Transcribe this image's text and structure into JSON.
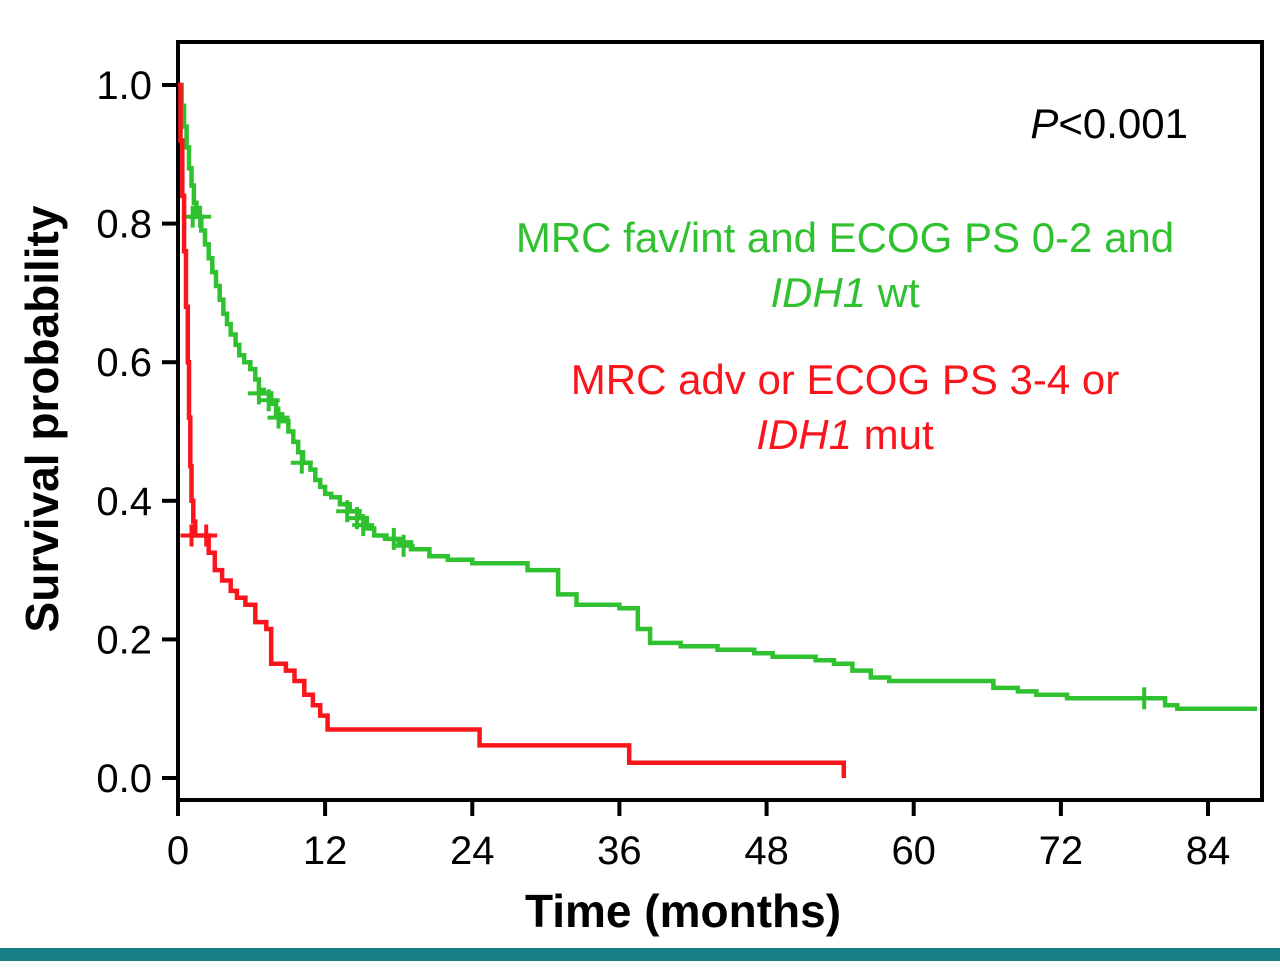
{
  "page": {
    "background": "#ffffff",
    "divider_color": "#177f88"
  },
  "annotations": {
    "p_value_italic": "P",
    "p_value_rest": "<0.001"
  },
  "axes": {
    "x_title": "Time (months)",
    "y_title": "Survival probability"
  },
  "legend": {
    "green": {
      "line1": "MRC fav/int and ECOG PS 0-2 and",
      "line2_italic": "IDH1",
      "line2_rest": " wt"
    },
    "red": {
      "line1": "MRC adv or ECOG PS 3-4 or",
      "line2_italic": "IDH1",
      "line2_rest": " mut"
    }
  },
  "chart_data": {
    "type": "line",
    "variant": "kaplan-meier-step",
    "title": "",
    "xlabel": "Time (months)",
    "ylabel": "Survival probability",
    "annotation": "P<0.001",
    "grid": false,
    "xlim": [
      0,
      88
    ],
    "ylim": [
      0,
      1.0
    ],
    "x_ticks": [
      0,
      12,
      24,
      36,
      48,
      60,
      72,
      84
    ],
    "y_ticks": [
      {
        "v": 1.0,
        "label": "1.0"
      },
      {
        "v": 0.8,
        "label": "0.8"
      },
      {
        "v": 0.6,
        "label": "0.6"
      },
      {
        "v": 0.4,
        "label": "0.4"
      },
      {
        "v": 0.2,
        "label": "0.2"
      },
      {
        "v": 0.0,
        "label": "0.0"
      }
    ],
    "series": [
      {
        "name": "MRC fav/int and ECOG PS 0-2 and IDH1 wt",
        "key": "green",
        "color": "#2fc12f",
        "points": [
          [
            0,
            1.0
          ],
          [
            0.3,
            0.97
          ],
          [
            0.5,
            0.94
          ],
          [
            0.7,
            0.91
          ],
          [
            0.9,
            0.88
          ],
          [
            1.1,
            0.855
          ],
          [
            1.3,
            0.83
          ],
          [
            1.5,
            0.81
          ],
          [
            1.9,
            0.79
          ],
          [
            2.2,
            0.77
          ],
          [
            2.5,
            0.75
          ],
          [
            2.8,
            0.73
          ],
          [
            3.1,
            0.71
          ],
          [
            3.4,
            0.69
          ],
          [
            3.7,
            0.67
          ],
          [
            4.0,
            0.655
          ],
          [
            4.3,
            0.64
          ],
          [
            4.7,
            0.625
          ],
          [
            5.0,
            0.61
          ],
          [
            5.4,
            0.6
          ],
          [
            5.9,
            0.59
          ],
          [
            6.3,
            0.575
          ],
          [
            6.6,
            0.56
          ],
          [
            7.0,
            0.555
          ],
          [
            7.6,
            0.54
          ],
          [
            8.0,
            0.525
          ],
          [
            8.5,
            0.515
          ],
          [
            9.0,
            0.5
          ],
          [
            9.4,
            0.485
          ],
          [
            9.8,
            0.47
          ],
          [
            10.2,
            0.455
          ],
          [
            10.8,
            0.445
          ],
          [
            11.2,
            0.43
          ],
          [
            11.6,
            0.42
          ],
          [
            12.0,
            0.41
          ],
          [
            12.5,
            0.405
          ],
          [
            13.2,
            0.395
          ],
          [
            14.0,
            0.385
          ],
          [
            14.8,
            0.375
          ],
          [
            15.4,
            0.36
          ],
          [
            16.0,
            0.35
          ],
          [
            17.0,
            0.345
          ],
          [
            18.0,
            0.34
          ],
          [
            19.0,
            0.33
          ],
          [
            20.5,
            0.32
          ],
          [
            22.0,
            0.315
          ],
          [
            24.0,
            0.31
          ],
          [
            28.5,
            0.3
          ],
          [
            31.0,
            0.265
          ],
          [
            32.5,
            0.25
          ],
          [
            36.0,
            0.245
          ],
          [
            37.5,
            0.215
          ],
          [
            38.5,
            0.195
          ],
          [
            41.0,
            0.19
          ],
          [
            44.0,
            0.185
          ],
          [
            47.0,
            0.18
          ],
          [
            48.5,
            0.175
          ],
          [
            52.0,
            0.17
          ],
          [
            53.5,
            0.165
          ],
          [
            55.0,
            0.155
          ],
          [
            56.5,
            0.145
          ],
          [
            58.0,
            0.14
          ],
          [
            66.5,
            0.13
          ],
          [
            68.5,
            0.125
          ],
          [
            70.0,
            0.12
          ],
          [
            72.5,
            0.115
          ],
          [
            80.5,
            0.105
          ],
          [
            81.5,
            0.1
          ],
          [
            88,
            0.1
          ]
        ],
        "censor_marks": [
          [
            1.2,
            0.81
          ],
          [
            1.8,
            0.81
          ],
          [
            6.6,
            0.555
          ],
          [
            7.4,
            0.545
          ],
          [
            8.2,
            0.52
          ],
          [
            10.1,
            0.455
          ],
          [
            13.8,
            0.385
          ],
          [
            14.6,
            0.375
          ],
          [
            15.1,
            0.365
          ],
          [
            17.6,
            0.345
          ],
          [
            18.4,
            0.335
          ],
          [
            78.8,
            0.115
          ]
        ]
      },
      {
        "name": "MRC adv or ECOG PS 3-4 or IDH1 mut",
        "key": "red",
        "color": "#f9151b",
        "points": [
          [
            0,
            1.0
          ],
          [
            0.2,
            0.92
          ],
          [
            0.35,
            0.84
          ],
          [
            0.5,
            0.76
          ],
          [
            0.65,
            0.68
          ],
          [
            0.8,
            0.6
          ],
          [
            0.9,
            0.52
          ],
          [
            1.0,
            0.45
          ],
          [
            1.1,
            0.4
          ],
          [
            1.25,
            0.37
          ],
          [
            1.4,
            0.35
          ],
          [
            2.5,
            0.325
          ],
          [
            3.0,
            0.3
          ],
          [
            3.6,
            0.285
          ],
          [
            4.3,
            0.27
          ],
          [
            4.8,
            0.26
          ],
          [
            5.5,
            0.25
          ],
          [
            6.3,
            0.225
          ],
          [
            7.2,
            0.215
          ],
          [
            7.6,
            0.165
          ],
          [
            8.8,
            0.155
          ],
          [
            9.5,
            0.14
          ],
          [
            10.3,
            0.12
          ],
          [
            11.0,
            0.105
          ],
          [
            11.6,
            0.09
          ],
          [
            12.2,
            0.07
          ],
          [
            24.6,
            0.047
          ],
          [
            36.8,
            0.022
          ],
          [
            54.3,
            0.0
          ]
        ],
        "censor_marks": [
          [
            1.1,
            0.35
          ],
          [
            2.3,
            0.35
          ]
        ]
      }
    ]
  }
}
